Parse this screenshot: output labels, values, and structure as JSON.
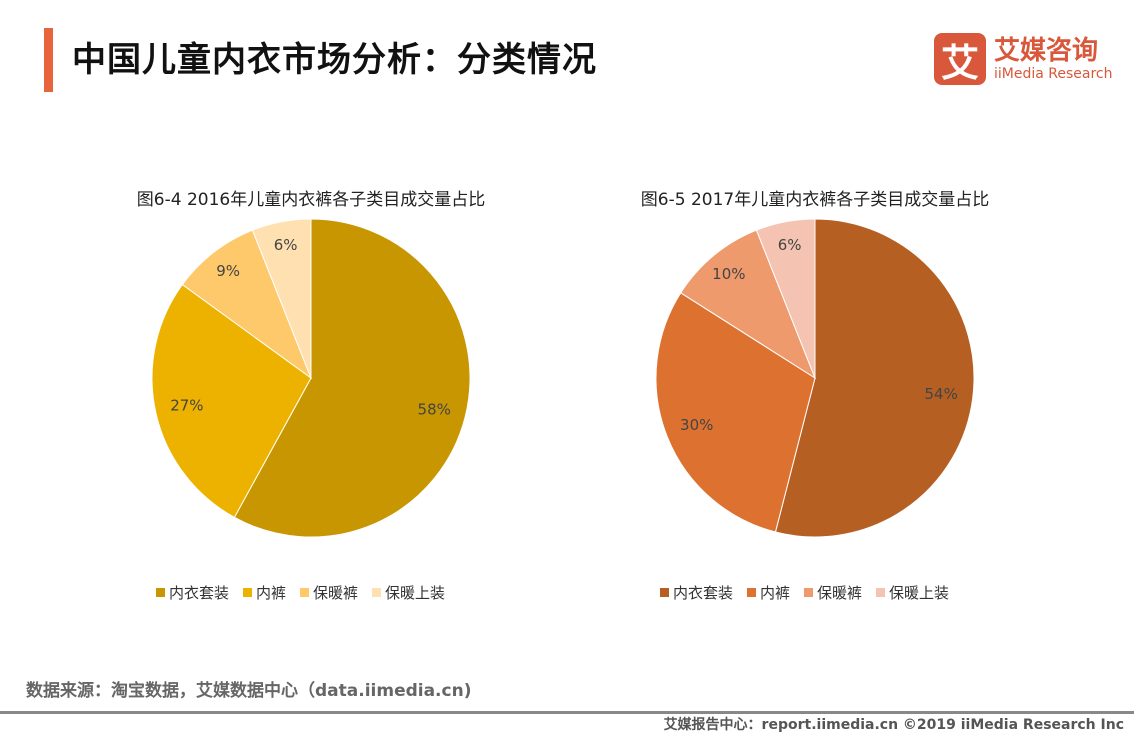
{
  "header": {
    "title": "中国儿童内衣市场分析：分类情况",
    "logo_cn": "艾媒咨询",
    "logo_en": "iiMedia Research",
    "logo_mark": "艾"
  },
  "chart_data": [
    {
      "type": "pie",
      "title": "图6-4 2016年儿童内衣裤各子类目成交量占比",
      "categories": [
        "内衣套装",
        "内裤",
        "保暖裤",
        "保暖上装"
      ],
      "values": [
        58,
        27,
        9,
        6
      ],
      "labels": [
        "58%",
        "27%",
        "9%",
        "6%"
      ],
      "colors": [
        "#C89600",
        "#EDB200",
        "#FDC96A",
        "#FFE0B0"
      ],
      "legend": "bottom"
    },
    {
      "type": "pie",
      "title": "图6-5 2017年儿童内衣裤各子类目成交量占比",
      "categories": [
        "内衣套装",
        "内裤",
        "保暖裤",
        "保暖上装"
      ],
      "values": [
        54,
        30,
        10,
        6
      ],
      "labels": [
        "54%",
        "30%",
        "10%",
        "6%"
      ],
      "colors": [
        "#B55F22",
        "#DD7130",
        "#EE9A6D",
        "#F4C3B2"
      ],
      "legend": "bottom"
    }
  ],
  "source": "数据来源：淘宝数据，艾媒数据中心（data.iimedia.cn)",
  "footer": "艾媒报告中心：report.iimedia.cn   ©2019  iiMedia Research  Inc"
}
